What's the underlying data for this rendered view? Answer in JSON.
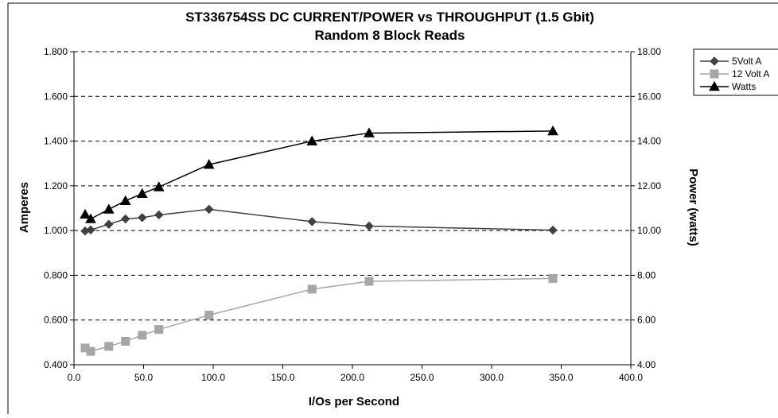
{
  "chart_data": {
    "type": "line",
    "title": "ST336754SS DC CURRENT/POWER vs THROUGHPUT (1.5 Gbit)",
    "subtitle": "Random 8 Block Reads",
    "xlabel": "I/Os per Second",
    "ylabel_left": "Amperes",
    "ylabel_right": "Power (watts)",
    "xlim": [
      0,
      400
    ],
    "ylim_left": [
      0.4,
      1.8
    ],
    "ylim_right": [
      4.0,
      18.0
    ],
    "x_ticks": [
      "0.0",
      "50.0",
      "100.0",
      "150.0",
      "200.0",
      "250.0",
      "300.0",
      "350.0",
      "400.0"
    ],
    "y_ticks_left": [
      "0.400",
      "0.600",
      "0.800",
      "1.000",
      "1.200",
      "1.400",
      "1.600",
      "1.800"
    ],
    "y_ticks_right": [
      "4.00",
      "6.00",
      "8.00",
      "10.00",
      "12.00",
      "14.00",
      "16.00",
      "18.00"
    ],
    "grid": "horizontal dashed",
    "legend_position": "right",
    "series": [
      {
        "name": "5Volt A",
        "axis": "left",
        "marker": "diamond",
        "color": "#404040",
        "x": [
          8,
          12,
          25,
          37,
          49,
          61,
          97,
          171,
          212,
          344
        ],
        "y": [
          0.998,
          1.003,
          1.028,
          1.052,
          1.058,
          1.07,
          1.095,
          1.04,
          1.02,
          1.002
        ]
      },
      {
        "name": "12 Volt A",
        "axis": "left",
        "marker": "square",
        "color": "#a6a6a6",
        "x": [
          8,
          12,
          25,
          37,
          49,
          61,
          97,
          171,
          212,
          344
        ],
        "y": [
          0.475,
          0.46,
          0.482,
          0.505,
          0.532,
          0.558,
          0.622,
          0.738,
          0.773,
          0.786
        ]
      },
      {
        "name": "Watts",
        "axis": "right",
        "marker": "triangle",
        "color": "#000000",
        "x": [
          8,
          12,
          25,
          37,
          49,
          61,
          97,
          171,
          212,
          344
        ],
        "y": [
          10.72,
          10.52,
          10.95,
          11.33,
          11.65,
          11.95,
          12.95,
          14.0,
          14.36,
          14.45
        ]
      }
    ]
  }
}
